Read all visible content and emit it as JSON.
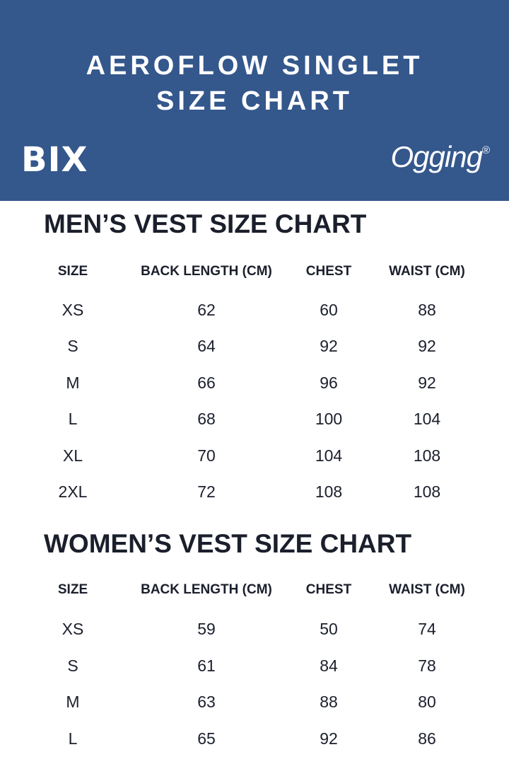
{
  "header": {
    "title_line1": "AEROFLOW SINGLET",
    "title_line2": "SIZE CHART",
    "logo_left": "BIX",
    "logo_right": "Ogging",
    "logo_right_mark": "®",
    "background_color": "#34578c"
  },
  "mens": {
    "heading": "MEN’S VEST SIZE CHART",
    "columns": [
      "SIZE",
      "BACK LENGTH (CM)",
      "CHEST",
      "WAIST (CM)"
    ],
    "rows": [
      [
        "XS",
        "62",
        "60",
        "88"
      ],
      [
        "S",
        "64",
        "92",
        "92"
      ],
      [
        "M",
        "66",
        "96",
        "92"
      ],
      [
        "L",
        "68",
        "100",
        "104"
      ],
      [
        "XL",
        "70",
        "104",
        "108"
      ],
      [
        "2XL",
        "72",
        "108",
        "108"
      ]
    ]
  },
  "womens": {
    "heading": "WOMEN’S VEST SIZE CHART",
    "columns": [
      "SIZE",
      "BACK LENGTH (CM)",
      "CHEST",
      "WAIST (CM)"
    ],
    "rows": [
      [
        "XS",
        "59",
        "50",
        "74"
      ],
      [
        "S",
        "61",
        "84",
        "78"
      ],
      [
        "M",
        "63",
        "88",
        "80"
      ],
      [
        "L",
        "65",
        "92",
        "86"
      ]
    ]
  }
}
